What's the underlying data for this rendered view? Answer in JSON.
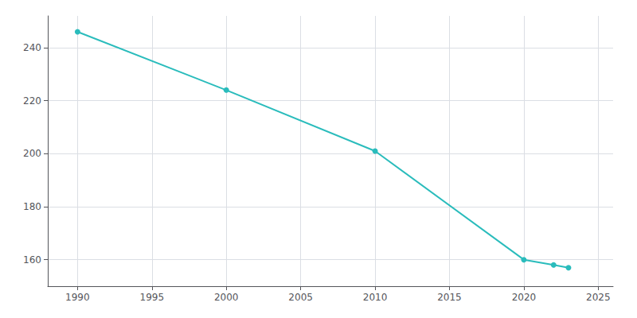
{
  "chart_data": {
    "type": "line",
    "x": [
      1990,
      2000,
      2010,
      2020,
      2022,
      2023
    ],
    "values": [
      246,
      224,
      201,
      160,
      158,
      157
    ],
    "color": "#2abcbc",
    "marker": "circle",
    "xlim": [
      1988,
      2026
    ],
    "xticks": [
      1990,
      1995,
      2000,
      2005,
      2010,
      2015,
      2020,
      2025
    ],
    "ylim": [
      150,
      252
    ],
    "yticks": [
      160,
      180,
      200,
      220,
      240
    ],
    "grid": true
  }
}
